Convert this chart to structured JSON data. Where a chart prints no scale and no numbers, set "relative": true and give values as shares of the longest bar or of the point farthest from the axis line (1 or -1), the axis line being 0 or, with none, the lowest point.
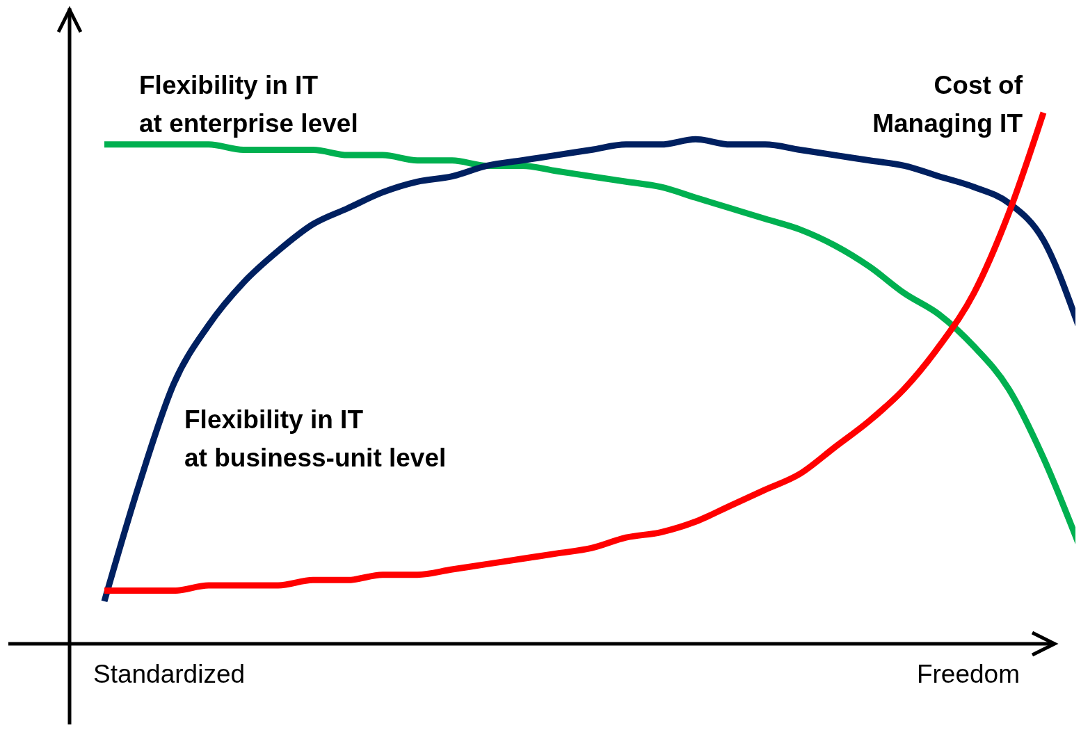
{
  "chart_data": {
    "type": "line",
    "relative": true,
    "marker": "none",
    "line_style": "solid",
    "categories": [
      null,
      null,
      null,
      null,
      null,
      null,
      null,
      null,
      null,
      null,
      null,
      null,
      null,
      null,
      null,
      null,
      null,
      null,
      null,
      null,
      null,
      null,
      null,
      null,
      null,
      null,
      null,
      null,
      null
    ],
    "series": [
      {
        "name": "Flexibility in IT\nat enterprise level",
        "color": "#00b050",
        "values": [
          0.94,
          0.94,
          0.94,
          0.94,
          0.93,
          0.93,
          0.93,
          0.92,
          0.92,
          0.91,
          0.91,
          0.9,
          0.9,
          0.89,
          0.88,
          0.87,
          0.86,
          0.84,
          0.82,
          0.8,
          0.78,
          0.75,
          0.71,
          0.66,
          0.62,
          0.56,
          0.48,
          0.35,
          0.19
        ]
      },
      {
        "name": "Flexibility in IT\nat business-unit level",
        "color": "#002060",
        "values": [
          0.08,
          0.3,
          0.49,
          0.6,
          0.68,
          0.74,
          0.79,
          0.82,
          0.85,
          0.87,
          0.88,
          0.9,
          0.91,
          0.92,
          0.93,
          0.94,
          0.94,
          0.95,
          0.94,
          0.94,
          0.93,
          0.92,
          0.91,
          0.9,
          0.88,
          0.86,
          0.83,
          0.76,
          0.6
        ]
      },
      {
        "name": "Cost of\nManaging IT",
        "color": "#ff0000",
        "values": [
          0.1,
          0.1,
          0.1,
          0.11,
          0.11,
          0.11,
          0.12,
          0.12,
          0.13,
          0.13,
          0.14,
          0.15,
          0.16,
          0.17,
          0.18,
          0.2,
          0.21,
          0.23,
          0.26,
          0.29,
          0.32,
          0.37,
          0.42,
          0.48,
          0.56,
          0.66,
          0.81,
          1,
          null
        ]
      }
    ],
    "annotations": [
      "Standardized",
      "Freedom"
    ]
  }
}
